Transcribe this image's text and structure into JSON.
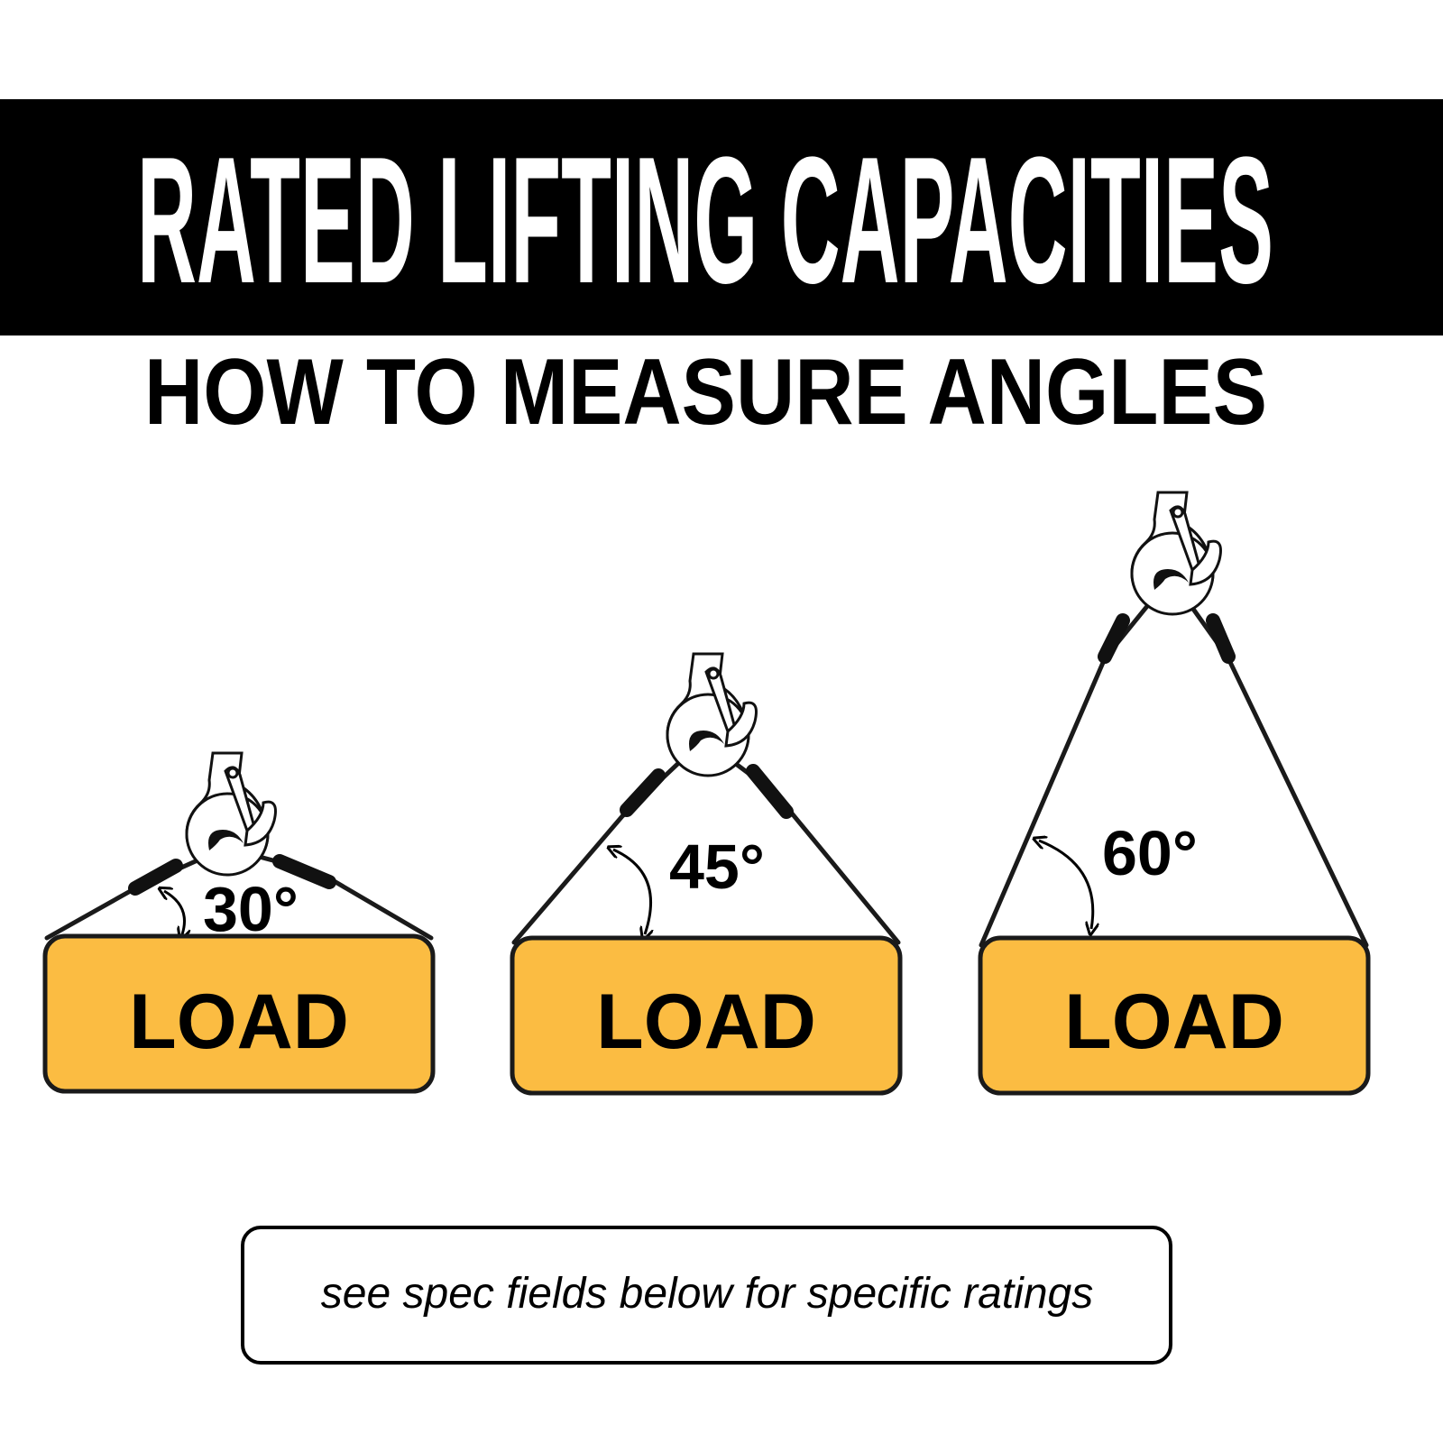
{
  "header": {
    "title": "RATED LIFTING CAPACITIES",
    "background": "#000000"
  },
  "subtitle": "HOW TO MEASURE ANGLES",
  "diagrams": [
    {
      "angle": "30°",
      "load_label": "LOAD"
    },
    {
      "angle": "45°",
      "load_label": "LOAD"
    },
    {
      "angle": "60°",
      "load_label": "LOAD"
    }
  ],
  "colors": {
    "load_fill": "#FBBC42",
    "outline": "#1a1a1a"
  },
  "note": "see spec fields below for specific ratings"
}
